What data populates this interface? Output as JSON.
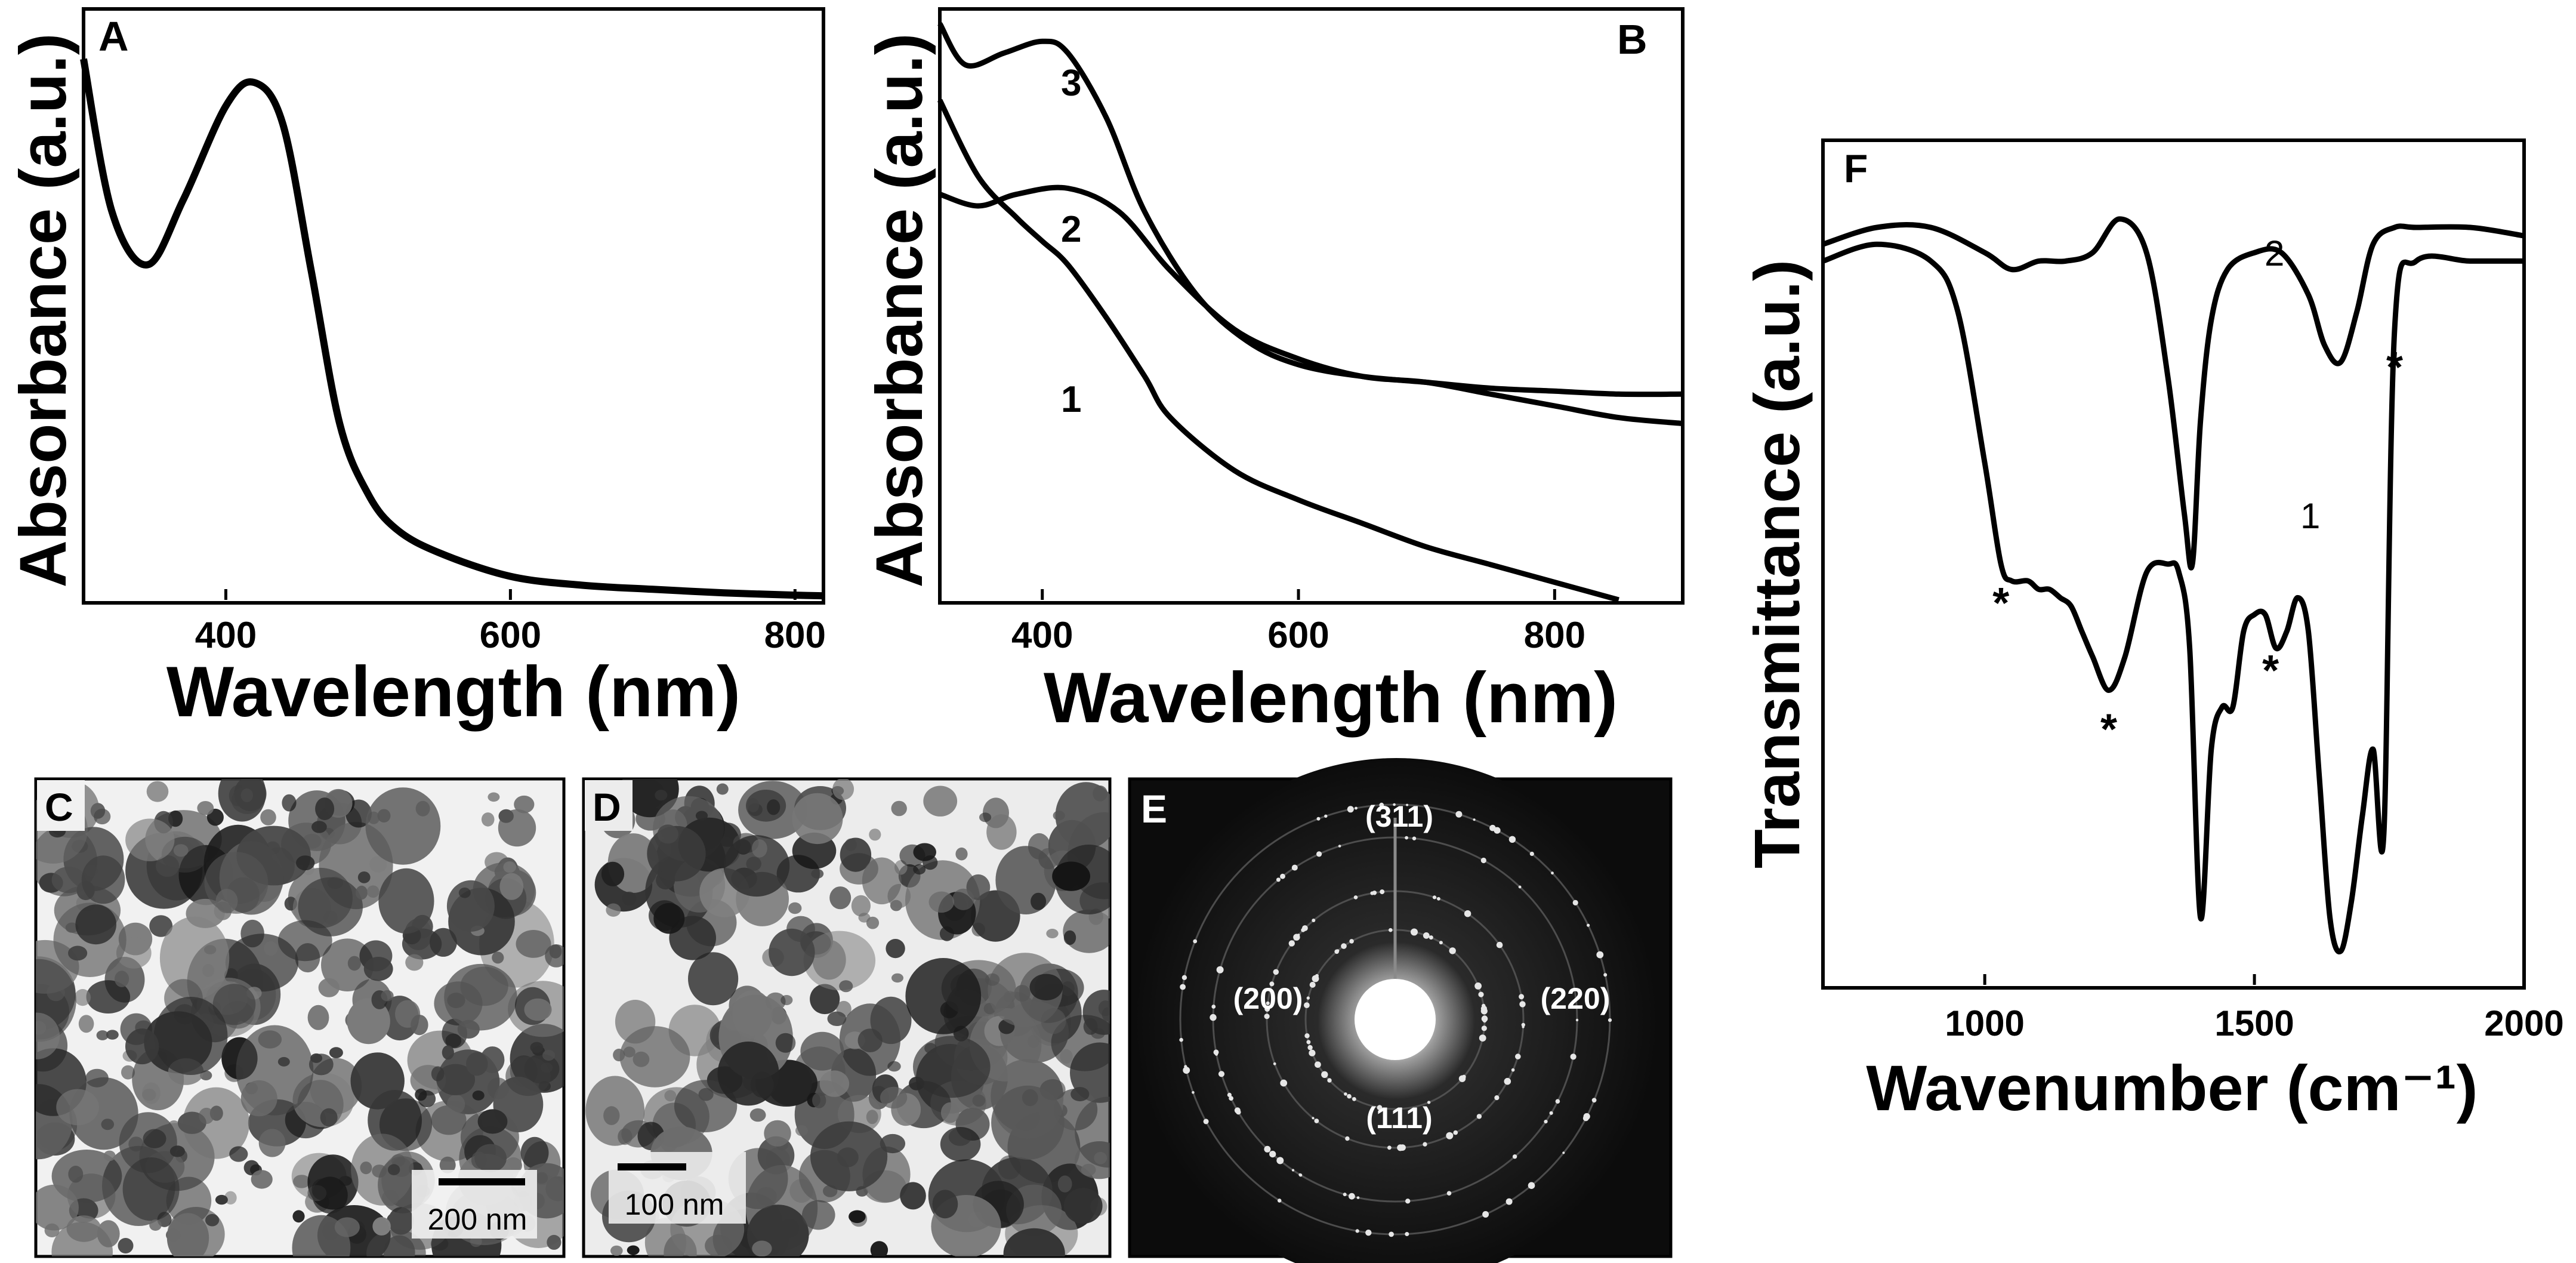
{
  "figure": {
    "panel_labels": {
      "A": "A",
      "B": "B",
      "C": "C",
      "D": "D",
      "E": "E",
      "F": "F"
    },
    "panel_c": {
      "scalebar_label": "200 nm"
    },
    "panel_d": {
      "scalebar_label": "100 nm"
    },
    "panel_e": {
      "ring_labels": [
        "(311)",
        "(200)",
        "(220)",
        "(111)"
      ]
    }
  },
  "chart_data": [
    {
      "id": "A",
      "type": "line",
      "xlabel": "Wavelength (nm)",
      "ylabel": "Absorbance (a.u.)",
      "xlim": [
        300,
        820
      ],
      "ylim": [
        0,
        1.0
      ],
      "xticks": [
        400,
        600,
        800
      ],
      "yticks_shown": false,
      "grid": false,
      "series": [
        {
          "x": [
            300,
            320,
            345,
            370,
            400,
            420,
            440,
            460,
            480,
            500,
            520,
            550,
            600,
            650,
            700,
            750,
            800,
            820
          ],
          "y": [
            0.92,
            0.66,
            0.57,
            0.68,
            0.84,
            0.88,
            0.81,
            0.56,
            0.3,
            0.18,
            0.12,
            0.08,
            0.04,
            0.025,
            0.018,
            0.012,
            0.008,
            0.007
          ]
        }
      ]
    },
    {
      "id": "B",
      "type": "line",
      "xlabel": "Wavelength (nm)",
      "ylabel": "Absorbance (a.u.)",
      "xlim": [
        320,
        900
      ],
      "ylim": [
        0,
        1.0
      ],
      "xticks": [
        400,
        600,
        800
      ],
      "yticks_shown": false,
      "grid": false,
      "series": [
        {
          "name": "1",
          "x": [
            320,
            350,
            380,
            400,
            420,
            450,
            480,
            500,
            550,
            600,
            650,
            700,
            750,
            800,
            850
          ],
          "y": [
            0.85,
            0.72,
            0.65,
            0.61,
            0.57,
            0.48,
            0.38,
            0.31,
            0.22,
            0.17,
            0.13,
            0.09,
            0.06,
            0.03,
            0.0
          ]
        },
        {
          "name": "2",
          "x": [
            320,
            350,
            380,
            420,
            460,
            500,
            550,
            600,
            650,
            700,
            750,
            800,
            850,
            900
          ],
          "y": [
            0.69,
            0.67,
            0.69,
            0.7,
            0.66,
            0.56,
            0.46,
            0.41,
            0.38,
            0.37,
            0.35,
            0.33,
            0.31,
            0.3
          ]
        },
        {
          "name": "3",
          "x": [
            320,
            340,
            370,
            400,
            420,
            450,
            480,
            520,
            560,
            600,
            650,
            700,
            750,
            800,
            850,
            900
          ],
          "y": [
            0.98,
            0.91,
            0.93,
            0.95,
            0.93,
            0.82,
            0.66,
            0.52,
            0.44,
            0.4,
            0.38,
            0.37,
            0.36,
            0.355,
            0.35,
            0.35
          ]
        }
      ]
    },
    {
      "id": "F",
      "type": "line",
      "xlabel": "Wavenumber (cm⁻¹)",
      "ylabel": "Transmittance (a.u.)",
      "xlim": [
        700,
        2000
      ],
      "ylim": [
        0,
        1.0
      ],
      "xticks": [
        1000,
        1500,
        2000
      ],
      "yticks_shown": false,
      "grid": false,
      "series": [
        {
          "name": "1",
          "x": [
            700,
            800,
            900,
            950,
            1000,
            1030,
            1050,
            1080,
            1100,
            1120,
            1140,
            1160,
            1180,
            1200,
            1230,
            1260,
            1300,
            1340,
            1360,
            1380,
            1400,
            1420,
            1440,
            1460,
            1480,
            1500,
            1520,
            1540,
            1560,
            1580,
            1600,
            1620,
            1640,
            1660,
            1680,
            1700,
            1720,
            1740,
            1760,
            1800,
            1900,
            2000
          ],
          "y": [
            0.86,
            0.88,
            0.86,
            0.8,
            0.62,
            0.5,
            0.48,
            0.48,
            0.47,
            0.47,
            0.46,
            0.45,
            0.42,
            0.39,
            0.35,
            0.39,
            0.49,
            0.5,
            0.49,
            0.4,
            0.08,
            0.28,
            0.33,
            0.33,
            0.42,
            0.44,
            0.44,
            0.4,
            0.42,
            0.46,
            0.42,
            0.25,
            0.08,
            0.04,
            0.1,
            0.2,
            0.28,
            0.18,
            0.78,
            0.86,
            0.86,
            0.86
          ]
        },
        {
          "name": "2",
          "x": [
            700,
            800,
            900,
            1000,
            1050,
            1100,
            1150,
            1200,
            1250,
            1300,
            1340,
            1370,
            1385,
            1400,
            1420,
            1450,
            1500,
            1550,
            1600,
            1630,
            1660,
            1690,
            1720,
            1760,
            1800,
            1900,
            2000
          ],
          "y": [
            0.88,
            0.9,
            0.9,
            0.87,
            0.85,
            0.86,
            0.86,
            0.87,
            0.91,
            0.87,
            0.72,
            0.56,
            0.5,
            0.67,
            0.79,
            0.85,
            0.87,
            0.87,
            0.82,
            0.76,
            0.74,
            0.8,
            0.88,
            0.9,
            0.9,
            0.9,
            0.89
          ]
        }
      ],
      "markers": [
        {
          "label": "*",
          "x": 1030
        },
        {
          "label": "*",
          "x": 1230
        },
        {
          "label": "*",
          "x": 1530
        },
        {
          "label": "*",
          "x": 1760
        }
      ]
    }
  ]
}
